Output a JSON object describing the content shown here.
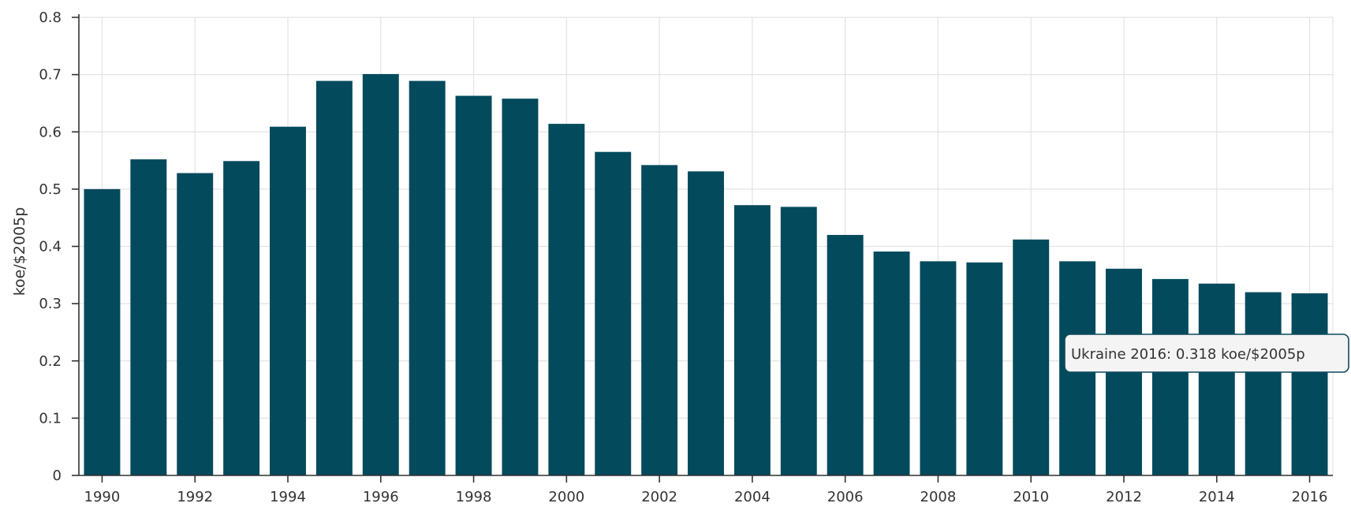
{
  "chart_data": {
    "type": "bar",
    "ylabel": "koe/$2005p",
    "xlabel": "",
    "ylim": [
      0,
      0.8
    ],
    "yticks": [
      "0",
      "0.1",
      "0.2",
      "0.3",
      "0.4",
      "0.5",
      "0.6",
      "0.7",
      "0.8"
    ],
    "categories": [
      "1990",
      "1991",
      "1992",
      "1993",
      "1994",
      "1995",
      "1996",
      "1997",
      "1998",
      "1999",
      "2000",
      "2001",
      "2002",
      "2003",
      "2004",
      "2005",
      "2006",
      "2007",
      "2008",
      "2009",
      "2010",
      "2011",
      "2012",
      "2013",
      "2014",
      "2015",
      "2016"
    ],
    "xtick_labels": [
      "1990",
      "1992",
      "1994",
      "1996",
      "1998",
      "2000",
      "2002",
      "2004",
      "2006",
      "2008",
      "2010",
      "2012",
      "2014",
      "2016"
    ],
    "values": [
      0.5,
      0.552,
      0.528,
      0.549,
      0.609,
      0.689,
      0.701,
      0.689,
      0.663,
      0.658,
      0.614,
      0.565,
      0.542,
      0.531,
      0.472,
      0.469,
      0.42,
      0.391,
      0.374,
      0.372,
      0.412,
      0.374,
      0.361,
      0.343,
      0.335,
      0.32,
      0.318
    ],
    "grid": true,
    "bar_color": "#024a5c",
    "tooltip": {
      "text": "Ukraine 2016: 0.318 koe/$2005p",
      "category": "2016"
    }
  }
}
